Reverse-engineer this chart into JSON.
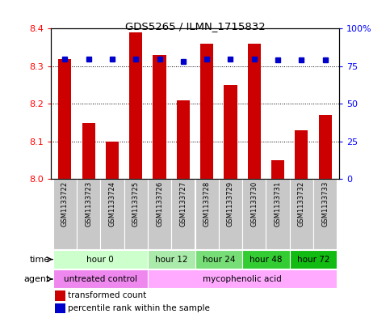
{
  "title": "GDS5265 / ILMN_1715832",
  "samples": [
    "GSM1133722",
    "GSM1133723",
    "GSM1133724",
    "GSM1133725",
    "GSM1133726",
    "GSM1133727",
    "GSM1133728",
    "GSM1133729",
    "GSM1133730",
    "GSM1133731",
    "GSM1133732",
    "GSM1133733"
  ],
  "transformed_count": [
    8.32,
    8.15,
    8.1,
    8.39,
    8.33,
    8.21,
    8.36,
    8.25,
    8.36,
    8.05,
    8.13,
    8.17
  ],
  "percentile_rank": [
    80,
    80,
    80,
    80,
    80,
    78,
    80,
    80,
    80,
    79,
    79,
    79
  ],
  "ymin": 8.0,
  "ymax": 8.4,
  "yticks": [
    8.0,
    8.1,
    8.2,
    8.3,
    8.4
  ],
  "y2min": 0,
  "y2max": 100,
  "y2ticks": [
    0,
    25,
    50,
    75,
    100
  ],
  "bar_color": "#CC0000",
  "dot_color": "#0000CC",
  "background_color": "#ffffff",
  "sample_box_color": "#c8c8c8",
  "time_groups": [
    {
      "label": "hour 0",
      "indices": [
        0,
        1,
        2,
        3
      ],
      "color": "#ccffcc"
    },
    {
      "label": "hour 12",
      "indices": [
        4,
        5
      ],
      "color": "#aaeaaa"
    },
    {
      "label": "hour 24",
      "indices": [
        6,
        7
      ],
      "color": "#77dd77"
    },
    {
      "label": "hour 48",
      "indices": [
        8,
        9
      ],
      "color": "#33cc33"
    },
    {
      "label": "hour 72",
      "indices": [
        10,
        11
      ],
      "color": "#11bb11"
    }
  ],
  "agent_groups": [
    {
      "label": "untreated control",
      "indices": [
        0,
        1,
        2,
        3
      ],
      "color": "#ee88ee"
    },
    {
      "label": "mycophenolic acid",
      "indices": [
        4,
        5,
        6,
        7,
        8,
        9,
        10,
        11
      ],
      "color": "#ffaaff"
    }
  ],
  "legend_bar_label": "transformed count",
  "legend_dot_label": "percentile rank within the sample",
  "time_label": "time",
  "agent_label": "agent"
}
